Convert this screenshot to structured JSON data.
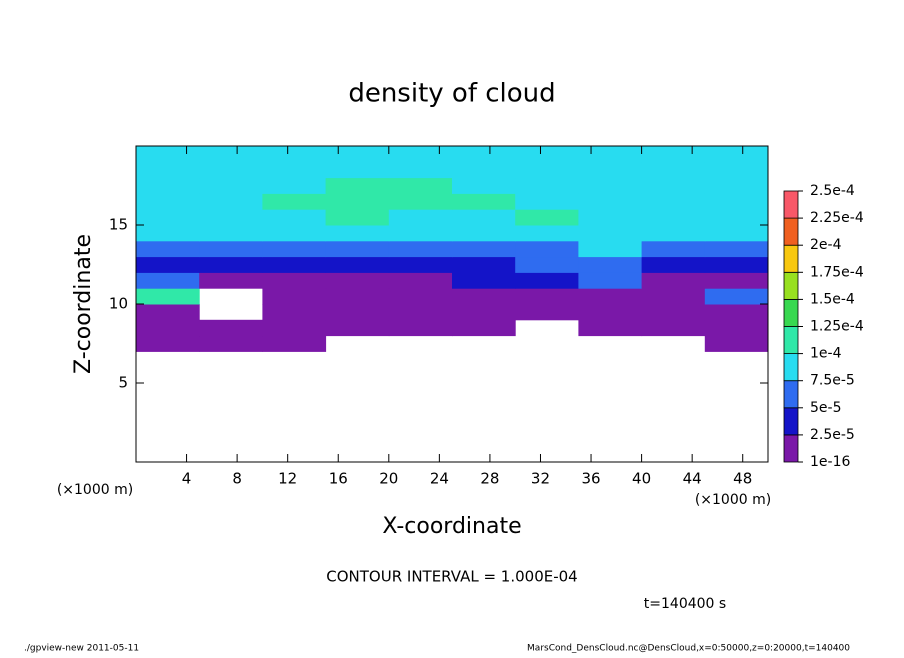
{
  "chart_data": {
    "type": "heatmap",
    "title": "density of cloud",
    "x_label": "X-coordinate",
    "y_label": "Z-coordinate",
    "x_unit": "(×1000 m)",
    "contour_note": "CONTOUR INTERVAL = 1.000E-04",
    "time_note": "t=140400 s",
    "footer_left": "./gpview-new  2011-05-11",
    "footer_right": "MarsCond_DensCloud.nc@DensCloud,x=0:50000,z=0:20000,t=140400",
    "xlim": [
      0,
      50
    ],
    "ylim": [
      0,
      20
    ],
    "xticks": [
      4,
      8,
      12,
      16,
      20,
      24,
      28,
      32,
      36,
      40,
      44,
      48
    ],
    "yticks": [
      5,
      10,
      15
    ],
    "x_edges": [
      0,
      5,
      10,
      15,
      20,
      25,
      30,
      35,
      40,
      45,
      50
    ],
    "z_edges": [
      0,
      1,
      2,
      3,
      4,
      5,
      6,
      7,
      8,
      9,
      10,
      11,
      12,
      13,
      14,
      15,
      16,
      17,
      18,
      19,
      20
    ],
    "values": [
      [
        null,
        null,
        null,
        null,
        null,
        null,
        null,
        null,
        null,
        null
      ],
      [
        null,
        null,
        null,
        null,
        null,
        null,
        null,
        null,
        null,
        null
      ],
      [
        null,
        null,
        null,
        null,
        null,
        null,
        null,
        null,
        null,
        null
      ],
      [
        null,
        null,
        null,
        null,
        null,
        null,
        null,
        null,
        null,
        null
      ],
      [
        null,
        null,
        null,
        null,
        null,
        null,
        null,
        null,
        null,
        null
      ],
      [
        null,
        null,
        null,
        null,
        null,
        null,
        null,
        null,
        null,
        null
      ],
      [
        null,
        null,
        null,
        null,
        null,
        null,
        null,
        null,
        null,
        null
      ],
      [
        1e-16,
        1e-16,
        1e-16,
        null,
        null,
        null,
        null,
        null,
        null,
        1e-16
      ],
      [
        1e-16,
        1e-16,
        1e-16,
        1e-16,
        1e-16,
        1e-16,
        null,
        1e-16,
        1e-16,
        1e-16
      ],
      [
        1e-16,
        null,
        1e-16,
        1e-16,
        1e-16,
        1e-16,
        1e-16,
        1e-16,
        1e-16,
        1e-16
      ],
      [
        0.0001,
        null,
        1e-16,
        1e-16,
        1e-16,
        1e-16,
        1e-16,
        1e-16,
        1e-16,
        5e-05
      ],
      [
        5e-05,
        1e-16,
        1e-16,
        1e-16,
        1e-16,
        2.5e-05,
        2.5e-05,
        5e-05,
        1e-16,
        1e-16
      ],
      [
        2.5e-05,
        2.5e-05,
        2.5e-05,
        2.5e-05,
        2.5e-05,
        2.5e-05,
        5e-05,
        5e-05,
        2.5e-05,
        2.5e-05
      ],
      [
        5e-05,
        5e-05,
        5e-05,
        5e-05,
        5e-05,
        5e-05,
        5e-05,
        7.5e-05,
        5e-05,
        5e-05
      ],
      [
        7.5e-05,
        7.5e-05,
        7.5e-05,
        7.5e-05,
        7.5e-05,
        7.5e-05,
        7.5e-05,
        7.5e-05,
        7.5e-05,
        7.5e-05
      ],
      [
        7.5e-05,
        7.5e-05,
        7.5e-05,
        0.0001,
        7.5e-05,
        7.5e-05,
        0.0001,
        7.5e-05,
        7.5e-05,
        7.5e-05
      ],
      [
        7.5e-05,
        7.5e-05,
        0.0001,
        0.0001,
        0.0001,
        0.0001,
        7.5e-05,
        7.5e-05,
        7.5e-05,
        7.5e-05
      ],
      [
        7.5e-05,
        7.5e-05,
        7.5e-05,
        0.0001,
        0.0001,
        7.5e-05,
        7.5e-05,
        7.5e-05,
        7.5e-05,
        7.5e-05
      ],
      [
        7.5e-05,
        7.5e-05,
        7.5e-05,
        7.5e-05,
        7.5e-05,
        7.5e-05,
        7.5e-05,
        7.5e-05,
        7.5e-05,
        7.5e-05
      ],
      [
        7.5e-05,
        7.5e-05,
        7.5e-05,
        7.5e-05,
        7.5e-05,
        7.5e-05,
        7.5e-05,
        7.5e-05,
        7.5e-05,
        7.5e-05
      ]
    ],
    "colorbar": {
      "levels": [
        {
          "value": 1e-16,
          "label": "1e-16"
        },
        {
          "value": 2.5e-05,
          "label": "2.5e-5"
        },
        {
          "value": 5e-05,
          "label": "5e-5"
        },
        {
          "value": 7.5e-05,
          "label": "7.5e-5"
        },
        {
          "value": 0.0001,
          "label": "1e-4"
        },
        {
          "value": 0.000125,
          "label": "1.25e-4"
        },
        {
          "value": 0.00015,
          "label": "1.5e-4"
        },
        {
          "value": 0.000175,
          "label": "1.75e-4"
        },
        {
          "value": 0.0002,
          "label": "2e-4"
        },
        {
          "value": 0.000225,
          "label": "2.25e-4"
        },
        {
          "value": 0.00025,
          "label": "2.5e-4"
        }
      ],
      "colors": [
        "#7a18a8",
        "#1414c8",
        "#2f6cf0",
        "#28dcf0",
        "#30e8a8",
        "#38d850",
        "#98e020",
        "#f8c810",
        "#f06020",
        "#f85868"
      ]
    }
  }
}
